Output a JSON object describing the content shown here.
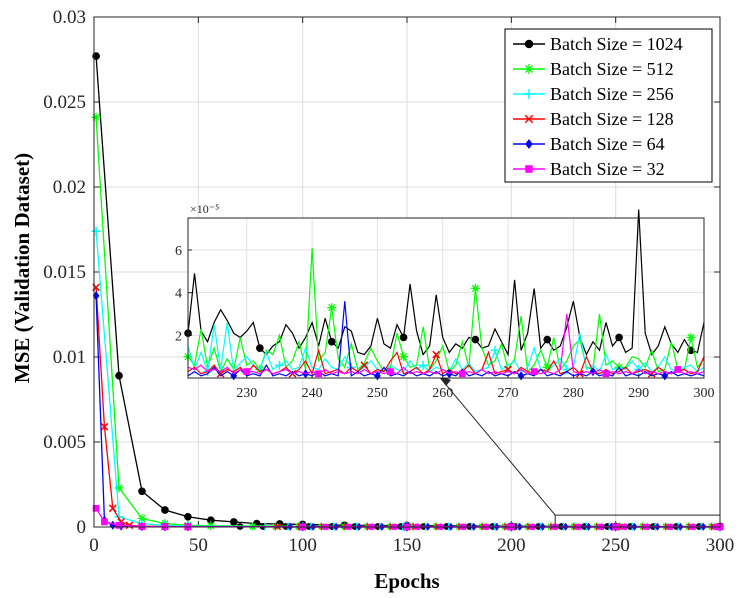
{
  "chart_data": {
    "type": "line",
    "xlabel": "Epochs",
    "ylabel": "MSE (Validation Dataset)",
    "xlim": [
      0,
      300
    ],
    "ylim": [
      0,
      0.03
    ],
    "xticks": [
      "0",
      "50",
      "100",
      "150",
      "200",
      "250",
      "300"
    ],
    "yticks": [
      "0",
      "0.005",
      "0.01",
      "0.015",
      "0.02",
      "0.025",
      "0.03"
    ],
    "grid": true,
    "legend_position": "top-right",
    "series": [
      {
        "name": "Batch Size = 1024",
        "color": "#000000",
        "marker": "circle",
        "x": [
          1,
          12,
          23,
          34,
          45,
          56,
          67,
          78,
          89,
          100,
          120,
          150,
          200,
          250,
          300
        ],
        "y": [
          0.0277,
          0.0089,
          0.0021,
          0.001,
          0.0006,
          0.0004,
          0.0003,
          0.0002,
          0.00018,
          0.00015,
          0.0001,
          8e-05,
          5e-05,
          3e-05,
          3e-05
        ]
      },
      {
        "name": "Batch Size = 512",
        "color": "#00ff00",
        "marker": "asterisk",
        "x": [
          1,
          12,
          23,
          34,
          45,
          56,
          100,
          150,
          200,
          250,
          300
        ],
        "y": [
          0.0241,
          0.0023,
          0.0005,
          0.0002,
          0.0001,
          8e-05,
          4e-05,
          3e-05,
          2e-05,
          2e-05,
          2e-05
        ]
      },
      {
        "name": "Batch Size = 256",
        "color": "#00ffff",
        "marker": "plus",
        "x": [
          1,
          12,
          23,
          34,
          45,
          100,
          150,
          200,
          250,
          300
        ],
        "y": [
          0.0174,
          0.0006,
          0.0002,
          0.0001,
          5e-05,
          2e-05,
          1e-05,
          1e-05,
          1e-05,
          1e-05
        ]
      },
      {
        "name": "Batch Size = 128",
        "color": "#ff0000",
        "marker": "cross",
        "x": [
          1,
          5,
          9,
          13,
          17,
          23,
          34,
          45,
          100,
          150,
          200,
          250,
          300
        ],
        "y": [
          0.0141,
          0.0059,
          0.0011,
          0.0003,
          0.0001,
          5e-05,
          3e-05,
          2e-05,
          1e-05,
          1e-05,
          1e-05,
          1e-05,
          1e-05
        ]
      },
      {
        "name": "Batch Size = 64",
        "color": "#0000ff",
        "marker": "diamond",
        "x": [
          1,
          5,
          9,
          13,
          23,
          34,
          45,
          100,
          150,
          200,
          250,
          300
        ],
        "y": [
          0.0136,
          0.0004,
          0.0001,
          5e-05,
          2e-05,
          1e-05,
          1e-05,
          5e-06,
          5e-06,
          5e-06,
          5e-06,
          5e-06
        ]
      },
      {
        "name": "Batch Size = 32",
        "color": "#ff00ff",
        "marker": "square",
        "x": [
          1,
          5,
          12,
          23,
          34,
          45,
          100,
          150,
          200,
          250,
          300
        ],
        "y": [
          0.0011,
          0.0003,
          0.0001,
          3e-05,
          2e-05,
          1e-05,
          5e-06,
          5e-06,
          5e-06,
          5e-06,
          5e-06
        ]
      }
    ],
    "inset": {
      "xlim": [
        221,
        300
      ],
      "ylim": [
        0,
        7.5
      ],
      "exponent": "×10⁻⁵",
      "xticks": [
        "230",
        "240",
        "250",
        "260",
        "270",
        "280",
        "290",
        "300"
      ],
      "yticks": [
        "2",
        "4",
        "6"
      ],
      "series": [
        {
          "name": "Batch Size = 1024",
          "color": "#000000",
          "marker": "circle",
          "y": [
            2.1,
            4.9,
            2.2,
            1.7,
            2.6,
            3.2,
            2.7,
            2.1,
            1.9,
            2.2,
            2.6,
            1.4,
            1.1,
            1.5,
            1.7,
            2.5,
            2.1,
            1.4,
            1.9,
            2.6,
            1.5,
            2.8,
            1.7,
            1.4,
            2.4,
            2.2,
            1.2,
            1.1,
            1.5,
            2.8,
            1.6,
            1.4,
            2.5,
            1.9,
            4.4,
            2.2,
            1.1,
            1.5,
            3.9,
            1.9,
            1.2,
            1.6,
            1.4,
            1.9,
            1.8,
            1.4,
            1.5,
            2.3,
            1.7,
            1.1,
            4.6,
            1.3,
            2.1,
            4.2,
            1.4,
            1.8,
            1.3,
            1.5,
            2.4,
            3.6,
            1.9,
            1.1,
            1.7,
            1.3,
            2.6,
            1.5,
            1.9,
            1.2,
            1.4,
            7.9,
            2.1,
            1.1,
            1.5,
            2.4,
            1.6,
            1.2,
            1.8,
            1.3,
            1.2,
            2.6
          ]
        },
        {
          "name": "Batch Size = 512",
          "color": "#00ff00",
          "marker": "asterisk",
          "y": [
            1.0,
            0.6,
            2.3,
            0.5,
            1.4,
            0.3,
            0.9,
            0.4,
            1.9,
            0.6,
            0.8,
            0.4,
            1.3,
            1.1,
            2.0,
            0.5,
            0.8,
            1.7,
            0.4,
            6.1,
            0.8,
            1.2,
            3.3,
            0.9,
            0.5,
            1.6,
            0.4,
            0.7,
            1.4,
            0.8,
            0.3,
            0.5,
            2.1,
            1.0,
            0.5,
            0.6,
            2.4,
            0.4,
            0.8,
            1.5,
            0.3,
            0.6,
            1.7,
            0.5,
            4.2,
            1.4,
            0.6,
            0.8,
            1.6,
            0.4,
            0.9,
            2.9,
            0.3,
            0.6,
            1.3,
            0.5,
            1.9,
            0.4,
            0.8,
            1.5,
            1.8,
            0.5,
            0.4,
            3.0,
            0.6,
            0.8,
            0.5,
            0.5,
            1.0,
            0.9,
            0.5,
            1.3,
            0.3,
            0.4,
            1.7,
            0.4,
            0.4,
            1.9,
            0.5,
            0.9
          ]
        },
        {
          "name": "Batch Size = 256",
          "color": "#00ffff",
          "marker": "plus",
          "y": [
            1.5,
            0.4,
            1.2,
            0.3,
            2.5,
            0.4,
            2.6,
            0.3,
            0.7,
            1.0,
            0.6,
            0.4,
            1.2,
            0.4,
            0.6,
            0.8,
            0.4,
            0.5,
            1.4,
            0.5,
            0.4,
            0.9,
            0.5,
            0.4,
            1.0,
            0.5,
            0.3,
            0.5,
            0.8,
            0.4,
            0.3,
            0.6,
            0.4,
            0.3,
            0.8,
            0.4,
            0.6,
            0.3,
            0.5,
            0.4,
            0.3,
            0.9,
            0.4,
            0.7,
            0.3,
            0.4,
            0.5,
            1.3,
            0.4,
            0.6,
            0.8,
            0.3,
            0.5,
            1.4,
            0.4,
            0.3,
            0.6,
            0.9,
            0.4,
            0.5,
            2.1,
            0.4,
            0.6,
            0.3,
            1.1,
            0.4,
            0.5,
            0.4,
            0.8,
            0.4,
            0.7,
            0.3,
            0.5,
            1.0,
            0.4,
            0.3,
            0.5,
            0.6,
            0.3,
            0.5
          ]
        },
        {
          "name": "Batch Size = 128",
          "color": "#ff0000",
          "marker": "cross",
          "y": [
            0.3,
            0.5,
            0.2,
            0.3,
            0.6,
            0.2,
            0.4,
            0.3,
            0.5,
            0.2,
            0.6,
            0.3,
            0.4,
            0.2,
            0.3,
            0.5,
            0.2,
            0.4,
            0.8,
            0.2,
            1.3,
            0.2,
            0.3,
            0.4,
            0.2,
            0.5,
            0.3,
            0.6,
            0.2,
            0.4,
            0.3,
            0.8,
            1.2,
            0.2,
            0.3,
            0.5,
            0.2,
            0.4,
            1.1,
            0.2,
            0.4,
            0.2,
            0.3,
            0.6,
            0.2,
            0.4,
            1.2,
            0.2,
            0.3,
            0.4,
            0.2,
            0.5,
            0.3,
            0.2,
            0.4,
            0.3,
            0.8,
            0.2,
            0.3,
            0.5,
            0.2,
            1.0,
            0.3,
            0.2,
            0.4,
            0.2,
            0.3,
            0.5,
            0.2,
            0.3,
            0.4,
            0.2,
            0.5,
            0.3,
            0.2,
            0.3,
            0.4,
            0.2,
            0.3,
            1.0
          ]
        },
        {
          "name": "Batch Size = 64",
          "color": "#0000ff",
          "marker": "diamond",
          "y": [
            0.1,
            0.3,
            0.1,
            0.2,
            0.5,
            0.1,
            0.3,
            0.1,
            0.4,
            0.1,
            0.2,
            0.1,
            0.6,
            0.1,
            0.2,
            0.1,
            0.3,
            0.1,
            0.2,
            0.1,
            0.3,
            0.1,
            0.2,
            0.1,
            3.6,
            0.1,
            0.3,
            0.1,
            0.2,
            0.1,
            0.5,
            0.1,
            0.2,
            0.1,
            0.3,
            0.1,
            0.2,
            0.1,
            0.3,
            0.1,
            0.2,
            0.1,
            0.4,
            0.1,
            0.2,
            0.1,
            0.3,
            0.1,
            0.2,
            0.1,
            0.3,
            0.1,
            0.2,
            0.1,
            0.4,
            0.1,
            0.2,
            0.1,
            0.3,
            0.1,
            0.2,
            0.1,
            0.3,
            0.1,
            0.2,
            0.1,
            0.5,
            0.1,
            0.2,
            0.1,
            0.3,
            0.1,
            0.2,
            0.1,
            0.3,
            0.1,
            0.2,
            0.1,
            0.2,
            0.1
          ]
        },
        {
          "name": "Batch Size = 32",
          "color": "#ff00ff",
          "marker": "square",
          "y": [
            0.5,
            0.4,
            0.6,
            0.3,
            0.4,
            0.3,
            0.5,
            0.2,
            0.4,
            0.3,
            0.3,
            0.2,
            0.4,
            0.2,
            0.3,
            0.4,
            0.2,
            0.3,
            0.2,
            0.3,
            0.2,
            0.4,
            0.2,
            0.3,
            0.2,
            0.3,
            0.2,
            0.4,
            0.2,
            0.3,
            0.2,
            0.3,
            0.2,
            0.5,
            0.2,
            0.3,
            0.2,
            0.3,
            0.2,
            0.4,
            0.2,
            0.3,
            0.2,
            0.3,
            0.2,
            0.4,
            0.2,
            0.3,
            0.2,
            0.3,
            0.2,
            0.4,
            0.2,
            0.3,
            0.2,
            0.3,
            0.2,
            0.4,
            3.0,
            0.3,
            0.2,
            0.3,
            0.2,
            0.4,
            0.2,
            0.3,
            0.2,
            0.3,
            0.2,
            0.4,
            0.2,
            0.3,
            0.2,
            0.3,
            0.2,
            0.4,
            0.2,
            0.3,
            0.2,
            0.3
          ]
        }
      ]
    }
  }
}
